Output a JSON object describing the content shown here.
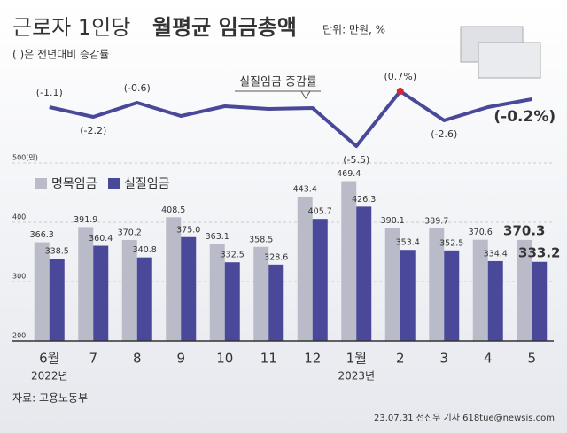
{
  "chart_data": {
    "type": "bar",
    "title": "근로자 1인당",
    "title_bold": "월평균 임금총액",
    "unit": "단위: 만원, %",
    "subtitle": "( )은 전년대비 증감률",
    "categories": [
      "6월",
      "7",
      "8",
      "9",
      "10",
      "11",
      "12",
      "1월",
      "2",
      "3",
      "4",
      "5"
    ],
    "year_labels": [
      "2022년",
      null,
      null,
      null,
      null,
      null,
      null,
      "2023년",
      null,
      null,
      null,
      null
    ],
    "ylim": [
      200,
      500
    ],
    "yticks": [
      200,
      300,
      400,
      {
        "value": 500,
        "label": "500(만)"
      }
    ],
    "grid": true,
    "series": [
      {
        "name": "명목임금",
        "color": "#b9bcc8",
        "values": [
          366.3,
          391.9,
          370.2,
          408.5,
          363.1,
          358.5,
          443.4,
          469.4,
          390.1,
          389.7,
          370.6,
          370.3
        ],
        "value_labels": [
          "366.3",
          "391.9",
          "370.2",
          "408.5",
          "363.1",
          "358.5",
          "443.4",
          "469.4",
          "390.1",
          "389.7",
          "370.6",
          "370.3"
        ]
      },
      {
        "name": "실질임금",
        "color": "#4a4898",
        "values": [
          338.5,
          360.4,
          340.8,
          375.0,
          332.5,
          328.6,
          405.7,
          426.3,
          353.4,
          352.5,
          334.4,
          333.2
        ],
        "value_labels": [
          "338.5",
          "360.4",
          "340.8",
          "375.0",
          "332.5",
          "328.6",
          "405.7",
          "426.3",
          "353.4",
          "352.5",
          "334.4",
          "333.2"
        ]
      }
    ],
    "line": {
      "name": "실질임금 증감률",
      "color": "#4a4898",
      "positive_color": "#d9262c",
      "values": [
        -1.1,
        -2.2,
        -0.6,
        -2.1,
        -1.0,
        -1.3,
        -1.2,
        -5.5,
        0.7,
        -2.6,
        -1.1,
        -0.2
      ],
      "value_labels": [
        "(-1.1)",
        "(-2.2)",
        "(-0.6)",
        null,
        null,
        null,
        null,
        "(-5.5)",
        "(0.7%)",
        "(-2.6)",
        null,
        "(-0.2%)"
      ]
    },
    "source": "자료: 고용노동부",
    "credit": "23.07.31 전진우 기자 618tue@newsis.com"
  }
}
